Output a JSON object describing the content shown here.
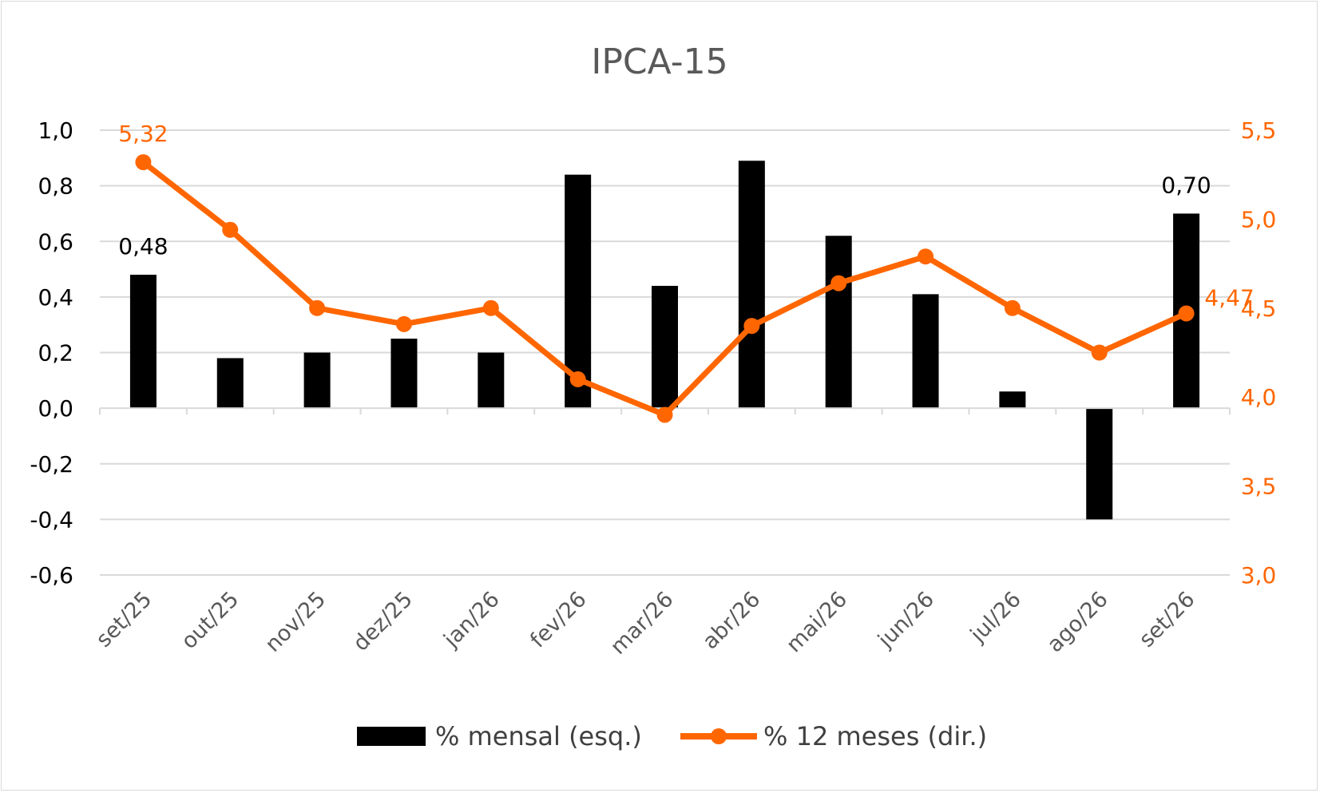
{
  "chart_data": {
    "type": "bar+line",
    "title": "IPCA-15",
    "categories": [
      "set/25",
      "out/25",
      "nov/25",
      "dez/25",
      "jan/26",
      "fev/26",
      "mar/26",
      "abr/26",
      "mai/26",
      "jun/26",
      "jul/26",
      "ago/26",
      "set/26"
    ],
    "series": [
      {
        "name": "% mensal (esq.)",
        "type": "bar",
        "axis": "left",
        "color": "#000000",
        "values": [
          0.48,
          0.18,
          0.2,
          0.25,
          0.2,
          0.84,
          0.44,
          0.89,
          0.62,
          0.41,
          0.06,
          -0.4,
          0.7
        ]
      },
      {
        "name": "% 12 meses (dir.)",
        "type": "line",
        "axis": "right",
        "color": "#ff6600",
        "values": [
          5.32,
          4.94,
          4.5,
          4.41,
          4.5,
          4.1,
          3.9,
          4.4,
          4.64,
          4.79,
          4.5,
          4.25,
          4.47
        ]
      }
    ],
    "left_axis": {
      "ylim": [
        -0.6,
        1.0
      ],
      "ticks": [
        1.0,
        0.8,
        0.6,
        0.4,
        0.2,
        0.0,
        -0.2,
        -0.4,
        -0.6
      ],
      "tick_labels": [
        "1,0",
        "0,8",
        "0,6",
        "0,4",
        "0,2",
        "0,0",
        "-0,2",
        "-0,4",
        "-0,6"
      ]
    },
    "right_axis": {
      "ylim": [
        3.0,
        5.5
      ],
      "ticks": [
        5.5,
        5.0,
        4.5,
        4.0,
        3.5,
        3.0
      ],
      "tick_labels": [
        "5,5",
        "5,0",
        "4,5",
        "4,0",
        "3,5",
        "3,0"
      ],
      "color": "#ff6600"
    },
    "data_labels": [
      {
        "series": 0,
        "index": 0,
        "text": "0,48"
      },
      {
        "series": 0,
        "index": 12,
        "text": "0,70"
      },
      {
        "series": 1,
        "index": 0,
        "text": "5,32"
      },
      {
        "series": 1,
        "index": 12,
        "text": "4,47"
      }
    ],
    "grid": true,
    "legend": "bottom"
  }
}
